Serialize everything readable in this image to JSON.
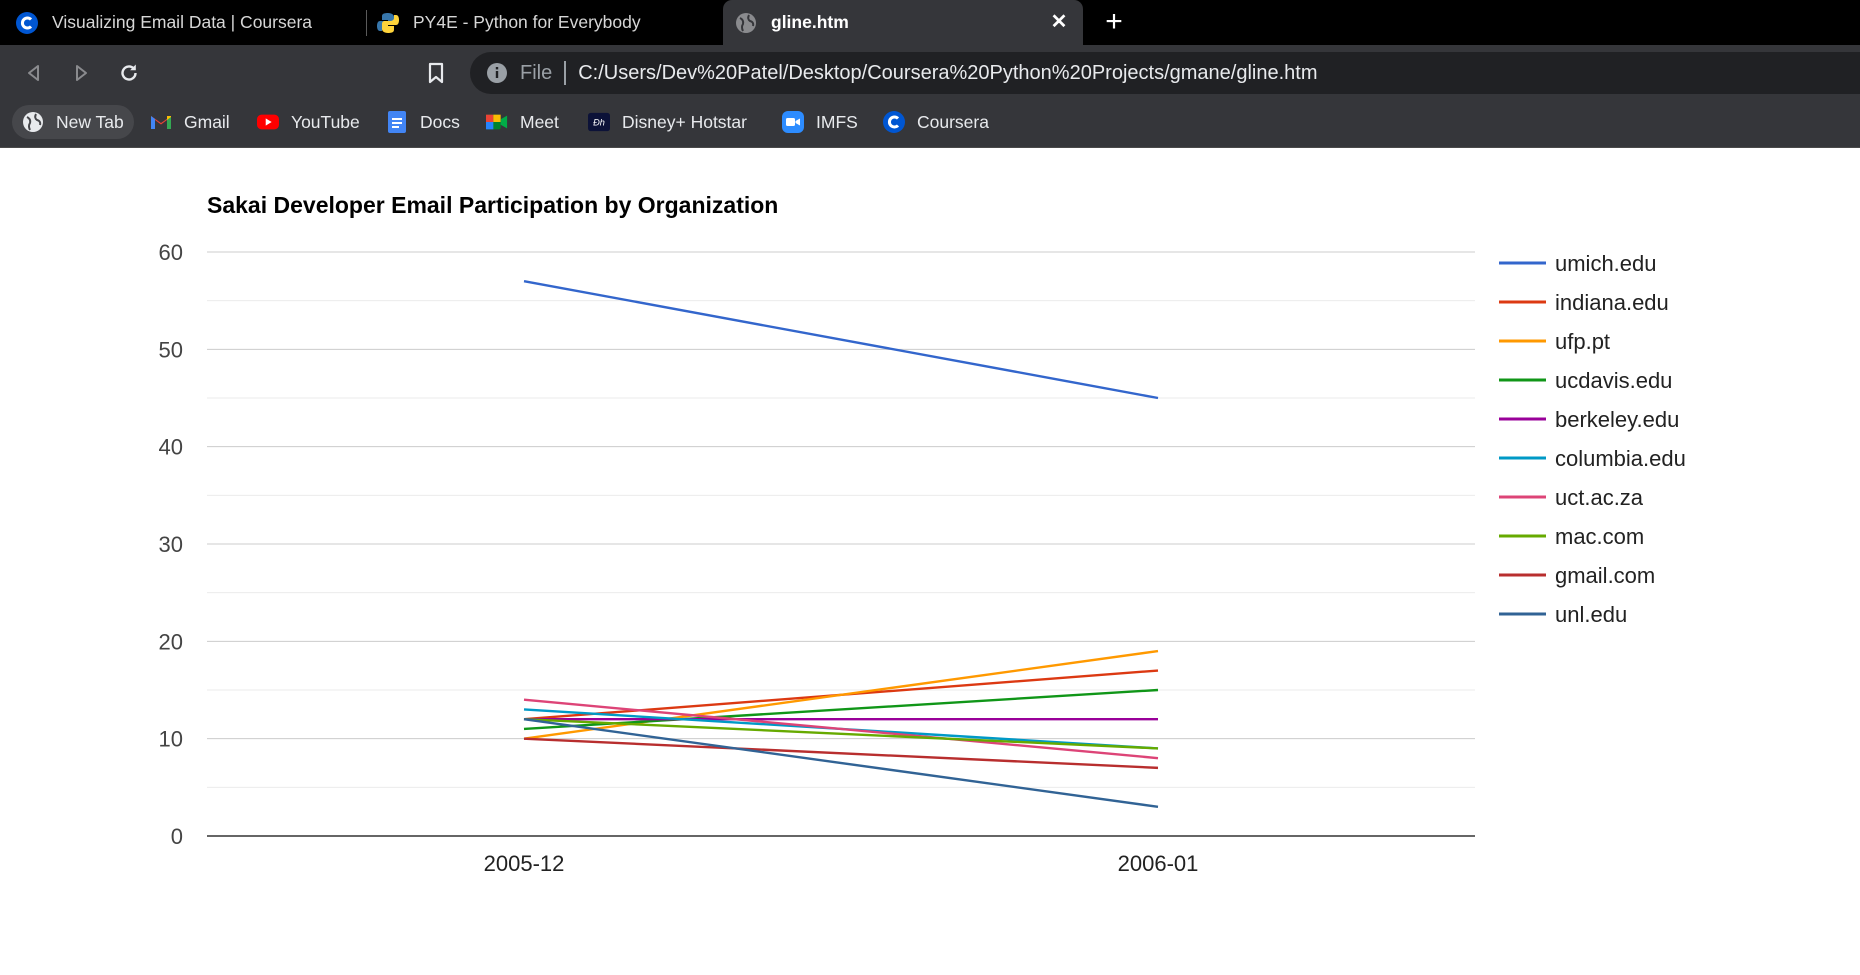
{
  "tabs": [
    {
      "title": "Visualizing Email Data | Coursera",
      "icon": "coursera-icon"
    },
    {
      "title": "PY4E - Python for Everybody",
      "icon": "python-icon"
    },
    {
      "title": "gline.htm",
      "icon": "globe-icon",
      "active": true
    }
  ],
  "omnibox": {
    "scheme": "File",
    "url": "C:/Users/Dev%20Patel/Desktop/Coursera%20Python%20Projects/gmane/gline.htm"
  },
  "bookmarks": [
    {
      "label": "New Tab",
      "icon": "globe-icon"
    },
    {
      "label": "Gmail",
      "icon": "gmail-icon"
    },
    {
      "label": "YouTube",
      "icon": "youtube-icon"
    },
    {
      "label": "Docs",
      "icon": "docs-icon"
    },
    {
      "label": "Meet",
      "icon": "meet-icon"
    },
    {
      "label": "Disney+ Hotstar",
      "icon": "hotstar-icon"
    },
    {
      "label": "IMFS",
      "icon": "zoom-icon"
    },
    {
      "label": "Coursera",
      "icon": "coursera-icon"
    }
  ],
  "colors": {
    "tabstrip": "#000000",
    "toolbar": "#35363a",
    "omnibox": "#202124",
    "coursera": "#0056d2",
    "gridline": "#cccccc",
    "axis": "#333333"
  },
  "chart_data": {
    "type": "line",
    "title": "Sakai Developer Email Participation by Organization",
    "xlabel": "",
    "ylabel": "",
    "categories": [
      "2005-12",
      "2006-01"
    ],
    "ylim": [
      0,
      60
    ],
    "yticks": [
      0,
      10,
      20,
      30,
      40,
      50,
      60
    ],
    "grid": true,
    "legend": "right",
    "series": [
      {
        "name": "umich.edu",
        "values": [
          57,
          45
        ],
        "color": "#3366cc"
      },
      {
        "name": "indiana.edu",
        "values": [
          12,
          17
        ],
        "color": "#dc3912"
      },
      {
        "name": "ufp.pt",
        "values": [
          10,
          19
        ],
        "color": "#ff9900"
      },
      {
        "name": "ucdavis.edu",
        "values": [
          11,
          15
        ],
        "color": "#109618"
      },
      {
        "name": "berkeley.edu",
        "values": [
          12,
          12
        ],
        "color": "#990099"
      },
      {
        "name": "columbia.edu",
        "values": [
          13,
          9
        ],
        "color": "#0099c6"
      },
      {
        "name": "uct.ac.za",
        "values": [
          14,
          8
        ],
        "color": "#dd4477"
      },
      {
        "name": "mac.com",
        "values": [
          12,
          9
        ],
        "color": "#66aa00"
      },
      {
        "name": "gmail.com",
        "values": [
          10,
          7
        ],
        "color": "#b82e2e"
      },
      {
        "name": "unl.edu",
        "values": [
          12,
          3
        ],
        "color": "#316395"
      }
    ]
  }
}
